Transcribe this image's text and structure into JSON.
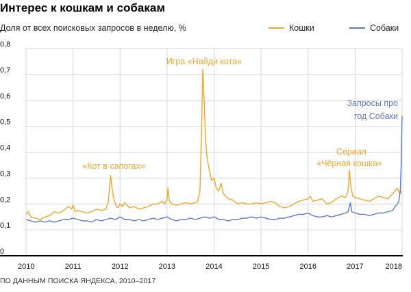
{
  "title": "Интерес к кошкам и собакам",
  "subtitle": "Доля от всех поисковых запросов в неделю, %",
  "footer": "ПО ДАННЫМ ПОИСКА ЯНДЕКСА, 2010–2017",
  "legend": {
    "cats": "Кошки",
    "dogs": "Собаки"
  },
  "colors": {
    "cats": "#f5a623",
    "dogs": "#5b77d6",
    "grid": "#d6d6d6",
    "baseline": "#000000"
  },
  "chart_data": {
    "type": "line",
    "title": "Интерес к кошкам и собакам",
    "ylabel": "Доля от всех поисковых запросов в неделю, %",
    "xlim": [
      2010,
      2018
    ],
    "ylim": [
      0,
      0.8
    ],
    "x_ticks": [
      "2010",
      "2011",
      "2012",
      "2013",
      "2014",
      "2015",
      "2016",
      "2017",
      "2018"
    ],
    "y_ticks": [
      "0",
      "0,1",
      "0,2",
      "0,3",
      "0,4",
      "0,5",
      "0,6",
      "0,7",
      "0,8"
    ],
    "grid": true,
    "legend_position": "top-right",
    "series": [
      {
        "name": "Кошки",
        "color": "#f5a623",
        "points": [
          [
            2010.0,
            0.16
          ],
          [
            2010.05,
            0.17
          ],
          [
            2010.1,
            0.15
          ],
          [
            2010.2,
            0.145
          ],
          [
            2010.3,
            0.14
          ],
          [
            2010.4,
            0.15
          ],
          [
            2010.5,
            0.155
          ],
          [
            2010.6,
            0.17
          ],
          [
            2010.7,
            0.165
          ],
          [
            2010.8,
            0.175
          ],
          [
            2010.9,
            0.19
          ],
          [
            2010.97,
            0.18
          ],
          [
            2011.0,
            0.195
          ],
          [
            2011.05,
            0.17
          ],
          [
            2011.1,
            0.175
          ],
          [
            2011.2,
            0.17
          ],
          [
            2011.3,
            0.165
          ],
          [
            2011.4,
            0.17
          ],
          [
            2011.5,
            0.18
          ],
          [
            2011.6,
            0.175
          ],
          [
            2011.7,
            0.18
          ],
          [
            2011.75,
            0.21
          ],
          [
            2011.8,
            0.31
          ],
          [
            2011.83,
            0.26
          ],
          [
            2011.87,
            0.22
          ],
          [
            2011.92,
            0.19
          ],
          [
            2011.95,
            0.185
          ],
          [
            2012.0,
            0.2
          ],
          [
            2012.05,
            0.19
          ],
          [
            2012.1,
            0.205
          ],
          [
            2012.2,
            0.185
          ],
          [
            2012.3,
            0.19
          ],
          [
            2012.4,
            0.18
          ],
          [
            2012.5,
            0.185
          ],
          [
            2012.6,
            0.19
          ],
          [
            2012.7,
            0.2
          ],
          [
            2012.8,
            0.2
          ],
          [
            2012.9,
            0.21
          ],
          [
            2012.95,
            0.2
          ],
          [
            2013.0,
            0.22
          ],
          [
            2013.02,
            0.26
          ],
          [
            2013.05,
            0.21
          ],
          [
            2013.1,
            0.2
          ],
          [
            2013.2,
            0.195
          ],
          [
            2013.3,
            0.2
          ],
          [
            2013.4,
            0.205
          ],
          [
            2013.5,
            0.2
          ],
          [
            2013.6,
            0.205
          ],
          [
            2013.65,
            0.21
          ],
          [
            2013.7,
            0.25
          ],
          [
            2013.73,
            0.45
          ],
          [
            2013.76,
            0.72
          ],
          [
            2013.79,
            0.6
          ],
          [
            2013.82,
            0.45
          ],
          [
            2013.85,
            0.38
          ],
          [
            2013.9,
            0.33
          ],
          [
            2013.95,
            0.29
          ],
          [
            2014.0,
            0.3
          ],
          [
            2014.05,
            0.26
          ],
          [
            2014.1,
            0.25
          ],
          [
            2014.15,
            0.28
          ],
          [
            2014.2,
            0.24
          ],
          [
            2014.3,
            0.22
          ],
          [
            2014.4,
            0.215
          ],
          [
            2014.5,
            0.2
          ],
          [
            2014.6,
            0.205
          ],
          [
            2014.7,
            0.2
          ],
          [
            2014.8,
            0.2
          ],
          [
            2014.9,
            0.205
          ],
          [
            2015.0,
            0.2
          ],
          [
            2015.1,
            0.205
          ],
          [
            2015.2,
            0.21
          ],
          [
            2015.3,
            0.205
          ],
          [
            2015.4,
            0.19
          ],
          [
            2015.5,
            0.185
          ],
          [
            2015.6,
            0.19
          ],
          [
            2015.7,
            0.2
          ],
          [
            2015.8,
            0.21
          ],
          [
            2015.9,
            0.215
          ],
          [
            2016.0,
            0.22
          ],
          [
            2016.05,
            0.23
          ],
          [
            2016.1,
            0.21
          ],
          [
            2016.2,
            0.215
          ],
          [
            2016.3,
            0.22
          ],
          [
            2016.4,
            0.2
          ],
          [
            2016.5,
            0.205
          ],
          [
            2016.6,
            0.22
          ],
          [
            2016.7,
            0.23
          ],
          [
            2016.8,
            0.225
          ],
          [
            2016.85,
            0.25
          ],
          [
            2016.88,
            0.33
          ],
          [
            2016.91,
            0.27
          ],
          [
            2016.95,
            0.23
          ],
          [
            2017.0,
            0.225
          ],
          [
            2017.1,
            0.22
          ],
          [
            2017.2,
            0.215
          ],
          [
            2017.3,
            0.21
          ],
          [
            2017.4,
            0.22
          ],
          [
            2017.5,
            0.23
          ],
          [
            2017.6,
            0.225
          ],
          [
            2017.7,
            0.22
          ],
          [
            2017.8,
            0.24
          ],
          [
            2017.9,
            0.26
          ],
          [
            2017.95,
            0.24
          ],
          [
            2018.0,
            0.25
          ]
        ]
      },
      {
        "name": "Собаки",
        "color": "#5b77d6",
        "points": [
          [
            2010.0,
            0.14
          ],
          [
            2010.1,
            0.135
          ],
          [
            2010.2,
            0.13
          ],
          [
            2010.3,
            0.135
          ],
          [
            2010.4,
            0.13
          ],
          [
            2010.5,
            0.135
          ],
          [
            2010.6,
            0.13
          ],
          [
            2010.7,
            0.135
          ],
          [
            2010.8,
            0.14
          ],
          [
            2010.9,
            0.14
          ],
          [
            2011.0,
            0.145
          ],
          [
            2011.1,
            0.14
          ],
          [
            2011.2,
            0.135
          ],
          [
            2011.3,
            0.135
          ],
          [
            2011.4,
            0.13
          ],
          [
            2011.5,
            0.14
          ],
          [
            2011.6,
            0.135
          ],
          [
            2011.7,
            0.14
          ],
          [
            2011.8,
            0.145
          ],
          [
            2011.9,
            0.14
          ],
          [
            2012.0,
            0.15
          ],
          [
            2012.1,
            0.14
          ],
          [
            2012.2,
            0.14
          ],
          [
            2012.3,
            0.135
          ],
          [
            2012.4,
            0.14
          ],
          [
            2012.5,
            0.135
          ],
          [
            2012.6,
            0.14
          ],
          [
            2012.7,
            0.145
          ],
          [
            2012.8,
            0.14
          ],
          [
            2012.9,
            0.145
          ],
          [
            2013.0,
            0.15
          ],
          [
            2013.1,
            0.14
          ],
          [
            2013.2,
            0.135
          ],
          [
            2013.3,
            0.14
          ],
          [
            2013.4,
            0.14
          ],
          [
            2013.5,
            0.145
          ],
          [
            2013.6,
            0.14
          ],
          [
            2013.7,
            0.145
          ],
          [
            2013.8,
            0.15
          ],
          [
            2013.9,
            0.145
          ],
          [
            2014.0,
            0.15
          ],
          [
            2014.1,
            0.14
          ],
          [
            2014.2,
            0.14
          ],
          [
            2014.3,
            0.135
          ],
          [
            2014.4,
            0.14
          ],
          [
            2014.5,
            0.14
          ],
          [
            2014.6,
            0.145
          ],
          [
            2014.7,
            0.145
          ],
          [
            2014.8,
            0.15
          ],
          [
            2014.9,
            0.145
          ],
          [
            2015.0,
            0.15
          ],
          [
            2015.1,
            0.145
          ],
          [
            2015.2,
            0.14
          ],
          [
            2015.3,
            0.14
          ],
          [
            2015.4,
            0.145
          ],
          [
            2015.5,
            0.145
          ],
          [
            2015.6,
            0.15
          ],
          [
            2015.7,
            0.155
          ],
          [
            2015.8,
            0.16
          ],
          [
            2015.9,
            0.16
          ],
          [
            2016.0,
            0.165
          ],
          [
            2016.1,
            0.155
          ],
          [
            2016.2,
            0.15
          ],
          [
            2016.3,
            0.15
          ],
          [
            2016.4,
            0.155
          ],
          [
            2016.5,
            0.15
          ],
          [
            2016.6,
            0.155
          ],
          [
            2016.7,
            0.16
          ],
          [
            2016.8,
            0.165
          ],
          [
            2016.85,
            0.17
          ],
          [
            2016.9,
            0.205
          ],
          [
            2016.93,
            0.17
          ],
          [
            2017.0,
            0.165
          ],
          [
            2017.1,
            0.16
          ],
          [
            2017.2,
            0.16
          ],
          [
            2017.3,
            0.155
          ],
          [
            2017.4,
            0.16
          ],
          [
            2017.5,
            0.165
          ],
          [
            2017.6,
            0.165
          ],
          [
            2017.7,
            0.17
          ],
          [
            2017.8,
            0.175
          ],
          [
            2017.85,
            0.19
          ],
          [
            2017.9,
            0.2
          ],
          [
            2017.93,
            0.21
          ],
          [
            2017.96,
            0.25
          ],
          [
            2017.98,
            0.35
          ],
          [
            2018.0,
            0.54
          ]
        ]
      }
    ],
    "annotations": [
      {
        "text": "«Кот в сапогах»",
        "series": "Кошки",
        "x": 2011.8,
        "y": 0.31
      },
      {
        "text": "Игра «Найди кота»",
        "series": "Кошки",
        "x": 2013.76,
        "y": 0.72
      },
      {
        "text": "Сериал",
        "series": "Кошки",
        "x": 2016.88,
        "y": 0.33
      },
      {
        "text": "«Чёрная кошка»",
        "series": "Кошки",
        "x": 2016.88,
        "y": 0.33
      },
      {
        "text": "Запросы про",
        "series": "Собаки",
        "x": 2018.0,
        "y": 0.54
      },
      {
        "text": "год Собаки",
        "series": "Собаки",
        "x": 2018.0,
        "y": 0.54
      }
    ]
  }
}
